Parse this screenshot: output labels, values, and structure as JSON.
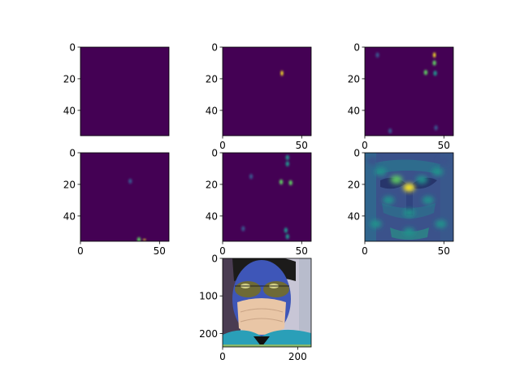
{
  "chart_data": [
    {
      "type": "heatmap",
      "panel": "1",
      "colormap": "viridis",
      "xlim": [
        0,
        56
      ],
      "ylim": [
        56,
        0
      ],
      "xticks": [],
      "yticks": [
        0,
        20,
        40
      ],
      "hotspots": []
    },
    {
      "type": "heatmap",
      "panel": "2",
      "colormap": "viridis",
      "xlim": [
        0,
        56
      ],
      "ylim": [
        56,
        0
      ],
      "xticks": [
        0,
        50
      ],
      "yticks": [
        0,
        20,
        40
      ],
      "hotspots": [
        {
          "x": 37.5,
          "y": 16.5,
          "value": 1.0
        }
      ]
    },
    {
      "type": "heatmap",
      "panel": "3",
      "colormap": "viridis",
      "xlim": [
        0,
        56
      ],
      "ylim": [
        56,
        0
      ],
      "xticks": [
        0,
        50
      ],
      "yticks": [
        0,
        20,
        40
      ],
      "hotspots": [
        {
          "x": 44,
          "y": 5,
          "value": 0.95
        },
        {
          "x": 44,
          "y": 10,
          "value": 0.8
        },
        {
          "x": 38.5,
          "y": 16,
          "value": 0.85
        },
        {
          "x": 44.5,
          "y": 16.5,
          "value": 0.6
        },
        {
          "x": 8,
          "y": 5,
          "value": 0.3
        },
        {
          "x": 45,
          "y": 51,
          "value": 0.35
        },
        {
          "x": 16,
          "y": 53,
          "value": 0.25
        }
      ]
    },
    {
      "type": "heatmap",
      "panel": "4",
      "colormap": "viridis",
      "xlim": [
        0,
        56
      ],
      "ylim": [
        56,
        0
      ],
      "xticks": [
        0,
        50
      ],
      "yticks": [
        0,
        20,
        40
      ],
      "hotspots": [
        {
          "x": 31.5,
          "y": 18,
          "value": 0.35
        },
        {
          "x": 40.5,
          "y": 55,
          "value": 0.95
        },
        {
          "x": 37,
          "y": 55,
          "value": 0.7
        }
      ]
    },
    {
      "type": "heatmap",
      "panel": "5",
      "colormap": "viridis",
      "xlim": [
        0,
        56
      ],
      "ylim": [
        56,
        0
      ],
      "xticks": [
        0,
        50
      ],
      "yticks": [
        0,
        20,
        40
      ],
      "hotspots": [
        {
          "x": 41,
          "y": 3,
          "value": 0.6
        },
        {
          "x": 41,
          "y": 7,
          "value": 0.5
        },
        {
          "x": 18,
          "y": 15,
          "value": 0.3
        },
        {
          "x": 37,
          "y": 18.5,
          "value": 0.75
        },
        {
          "x": 43,
          "y": 19,
          "value": 0.7
        },
        {
          "x": 13,
          "y": 48,
          "value": 0.3
        },
        {
          "x": 40,
          "y": 49,
          "value": 0.55
        },
        {
          "x": 41,
          "y": 53,
          "value": 0.45
        }
      ]
    },
    {
      "type": "heatmap",
      "panel": "6",
      "colormap": "viridis",
      "xlim": [
        0,
        56
      ],
      "ylim": [
        56,
        0
      ],
      "xticks": [
        0,
        50
      ],
      "yticks": [
        0,
        20,
        40
      ],
      "hotspots": [
        {
          "x": 28,
          "y": 22,
          "value": 0.9
        },
        {
          "x": 20,
          "y": 17,
          "value": 0.65
        },
        {
          "x": 36,
          "y": 17,
          "value": 0.55
        },
        {
          "x": 10,
          "y": 12,
          "value": 0.55
        },
        {
          "x": 46,
          "y": 12,
          "value": 0.45
        },
        {
          "x": 15,
          "y": 30,
          "value": 0.5
        },
        {
          "x": 40,
          "y": 30,
          "value": 0.45
        },
        {
          "x": 28,
          "y": 38,
          "value": 0.5
        },
        {
          "x": 7,
          "y": 45,
          "value": 0.45
        },
        {
          "x": 48,
          "y": 45,
          "value": 0.4
        },
        {
          "x": 28,
          "y": 50,
          "value": 0.4
        },
        {
          "x": 5,
          "y": 5,
          "value": 0.35
        },
        {
          "x": 50,
          "y": 5,
          "value": 0.3
        }
      ]
    },
    {
      "type": "image",
      "panel": "7",
      "content": "photo",
      "xlim": [
        0,
        236
      ],
      "ylim": [
        236,
        0
      ],
      "xticks": [
        0,
        200
      ],
      "yticks": [
        0,
        100,
        200
      ]
    }
  ],
  "colors": {
    "viridis": [
      "#440154",
      "#3b528b",
      "#21918c",
      "#5ec962",
      "#fde725"
    ],
    "background": "#440154"
  }
}
